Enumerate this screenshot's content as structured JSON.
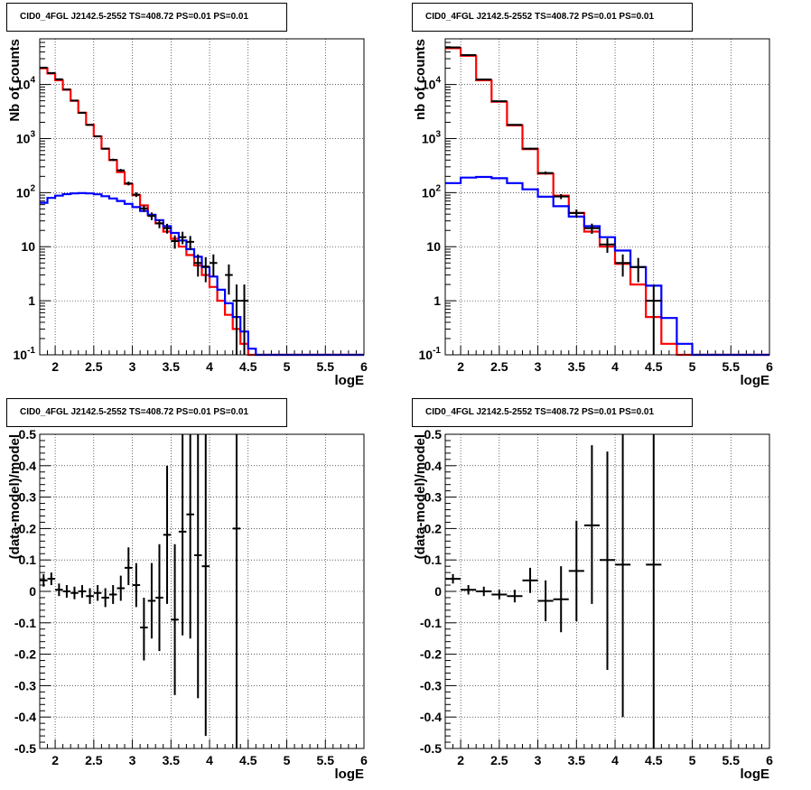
{
  "colors": {
    "data": "#000000",
    "total_model": "#ff0000",
    "bkg_model": "#0000ff",
    "grid": "#000000",
    "frame": "#000000"
  },
  "chart_data": [
    {
      "id": "counts-left",
      "type": "line",
      "title": "CID0_4FGL J2142.5-2552 TS=408.72 PS=0.01 PS=0.01",
      "xlabel": "logE",
      "ylabel": "Nb of counts",
      "xlim": [
        1.8,
        6.0
      ],
      "ylim": [
        0.1,
        70000
      ],
      "yscale": "log",
      "grid": true,
      "xticks": [
        "2",
        "2.5",
        "3",
        "3.5",
        "4",
        "4.5",
        "5",
        "5.5",
        "6"
      ],
      "yticks": [
        {
          "v": 0.1,
          "base": "10",
          "exp": "-1"
        },
        {
          "v": 1,
          "label": "1"
        },
        {
          "v": 10,
          "label": "10"
        },
        {
          "v": 100,
          "base": "10",
          "exp": "2"
        },
        {
          "v": 1000,
          "base": "10",
          "exp": "3"
        },
        {
          "v": 10000,
          "base": "10",
          "exp": "4"
        }
      ],
      "binning": {
        "start": 1.8,
        "width": 0.1
      },
      "series": [
        {
          "role": "total_model",
          "values": [
            20000,
            16000,
            12000,
            8000,
            5000,
            3000,
            1800,
            1100,
            650,
            400,
            240,
            145,
            90,
            58,
            38,
            27,
            19,
            14,
            10,
            7,
            4.5,
            3.0,
            1.8,
            1.0,
            0.55,
            0.3,
            0.16,
            0.1,
            0.1,
            0.1,
            0.1,
            0.1,
            0.1,
            0.1,
            0.1,
            0.1,
            0.1,
            0.1,
            0.1,
            0.1,
            0.1,
            0.1
          ]
        },
        {
          "role": "bkg_model",
          "values": [
            65,
            80,
            88,
            94,
            97,
            98,
            97,
            93,
            86,
            78,
            70,
            62,
            54,
            46,
            39,
            31,
            24,
            18,
            13,
            9,
            6.5,
            4.2,
            2.8,
            1.6,
            0.9,
            0.5,
            0.27,
            0.13,
            0.1,
            0.1,
            0.1,
            0.1,
            0.1,
            0.1,
            0.1,
            0.1,
            0.1,
            0.1,
            0.1,
            0.1,
            0.1,
            0.1
          ]
        }
      ],
      "points": [
        {
          "x": 1.85,
          "y": 20500,
          "lo": 20200,
          "hi": 20800
        },
        {
          "x": 1.95,
          "y": 16300,
          "lo": 16000,
          "hi": 16600
        },
        {
          "x": 2.05,
          "y": 12500,
          "lo": 12300,
          "hi": 12700
        },
        {
          "x": 2.15,
          "y": 8100,
          "lo": 7950,
          "hi": 8250
        },
        {
          "x": 2.25,
          "y": 5050,
          "lo": 4950,
          "hi": 5150
        },
        {
          "x": 2.35,
          "y": 3000,
          "lo": 2940,
          "hi": 3060
        },
        {
          "x": 2.45,
          "y": 1790,
          "lo": 1750,
          "hi": 1830
        },
        {
          "x": 2.55,
          "y": 1100,
          "lo": 1070,
          "hi": 1130
        },
        {
          "x": 2.65,
          "y": 650,
          "lo": 625,
          "hi": 675
        },
        {
          "x": 2.75,
          "y": 405,
          "lo": 385,
          "hi": 425
        },
        {
          "x": 2.85,
          "y": 258,
          "lo": 242,
          "hi": 274
        },
        {
          "x": 2.95,
          "y": 148,
          "lo": 136,
          "hi": 160
        },
        {
          "x": 3.05,
          "y": 92,
          "lo": 83,
          "hi": 101
        },
        {
          "x": 3.15,
          "y": 51,
          "lo": 44,
          "hi": 58
        },
        {
          "x": 3.25,
          "y": 37,
          "lo": 31,
          "hi": 43
        },
        {
          "x": 3.35,
          "y": 27,
          "lo": 22,
          "hi": 32
        },
        {
          "x": 3.45,
          "y": 22,
          "lo": 17.5,
          "hi": 26.5
        },
        {
          "x": 3.55,
          "y": 12.7,
          "lo": 9.2,
          "hi": 16.2
        },
        {
          "x": 3.65,
          "y": 15,
          "lo": 11.1,
          "hi": 18.9
        },
        {
          "x": 3.75,
          "y": 12.3,
          "lo": 8.8,
          "hi": 15.8
        },
        {
          "x": 3.85,
          "y": 5,
          "lo": 2.8,
          "hi": 7.2
        },
        {
          "x": 3.95,
          "y": 4.3,
          "lo": 2.2,
          "hi": 6.4
        },
        {
          "x": 4.05,
          "y": 5.0,
          "lo": 2.8,
          "hi": 7.2
        },
        {
          "x": 4.25,
          "y": 3.0,
          "lo": 1.3,
          "hi": 4.7
        },
        {
          "x": 4.35,
          "y": 1.0,
          "lo": 0.1,
          "hi": 2.0
        },
        {
          "x": 4.45,
          "y": 1.0,
          "lo": 0.1,
          "hi": 2.0
        }
      ]
    },
    {
      "id": "counts-right",
      "type": "line",
      "title": "CID0_4FGL J2142.5-2552 TS=408.72 PS=0.01 PS=0.01",
      "xlabel": "logE",
      "ylabel": "nb of counts",
      "xlim": [
        1.8,
        6.0
      ],
      "ylim": [
        0.1,
        70000
      ],
      "yscale": "log",
      "grid": true,
      "xticks": [
        "2",
        "2.5",
        "3",
        "3.5",
        "4",
        "4.5",
        "5",
        "5.5",
        "6"
      ],
      "yticks": [
        {
          "v": 0.1,
          "base": "10",
          "exp": "-1"
        },
        {
          "v": 1,
          "label": "1"
        },
        {
          "v": 10,
          "label": "10"
        },
        {
          "v": 100,
          "base": "10",
          "exp": "2"
        },
        {
          "v": 1000,
          "base": "10",
          "exp": "3"
        },
        {
          "v": 10000,
          "base": "10",
          "exp": "4"
        }
      ],
      "binning": {
        "start": 1.8,
        "width": 0.2
      },
      "series": [
        {
          "role": "total_model",
          "values": [
            47000,
            34000,
            12000,
            4800,
            1750,
            640,
            225,
            88,
            42,
            19,
            10,
            4.8,
            2.0,
            0.5,
            0.16,
            0.1,
            0.1,
            0.1,
            0.1,
            0.1,
            0.1
          ]
        },
        {
          "role": "bkg_model",
          "values": [
            150,
            190,
            195,
            185,
            150,
            115,
            84,
            56,
            36,
            24,
            15,
            8.5,
            4.2,
            1.9,
            0.48,
            0.16,
            0.1,
            0.1,
            0.1,
            0.1,
            0.1
          ]
        }
      ],
      "points": [
        {
          "x": 1.9,
          "y": 48500,
          "lo": 48100,
          "hi": 48900
        },
        {
          "x": 2.1,
          "y": 35000,
          "lo": 34700,
          "hi": 35300
        },
        {
          "x": 2.3,
          "y": 12400,
          "lo": 12200,
          "hi": 12600
        },
        {
          "x": 2.5,
          "y": 4900,
          "lo": 4800,
          "hi": 5000
        },
        {
          "x": 2.7,
          "y": 1800,
          "lo": 1760,
          "hi": 1840
        },
        {
          "x": 2.9,
          "y": 650,
          "lo": 625,
          "hi": 675
        },
        {
          "x": 3.1,
          "y": 231,
          "lo": 216,
          "hi": 246
        },
        {
          "x": 3.3,
          "y": 85,
          "lo": 76,
          "hi": 94
        },
        {
          "x": 3.5,
          "y": 42,
          "lo": 35,
          "hi": 49
        },
        {
          "x": 3.7,
          "y": 22,
          "lo": 17.3,
          "hi": 26.7
        },
        {
          "x": 3.9,
          "y": 11,
          "lo": 7.7,
          "hi": 14.3
        },
        {
          "x": 4.1,
          "y": 5.0,
          "lo": 2.8,
          "hi": 7.2
        },
        {
          "x": 4.3,
          "y": 4.2,
          "lo": 2.2,
          "hi": 6.2
        },
        {
          "x": 4.5,
          "y": 1.0,
          "lo": 0.1,
          "hi": 2.0
        }
      ]
    },
    {
      "id": "residuals-left",
      "type": "scatter",
      "title": "CID0_4FGL J2142.5-2552 TS=408.72 PS=0.01 PS=0.01",
      "xlabel": "logE",
      "ylabel": "(data-model)/model",
      "xlim": [
        1.8,
        6.0
      ],
      "ylim": [
        -0.5,
        0.5
      ],
      "grid": true,
      "xticks": [
        "2",
        "2.5",
        "3",
        "3.5",
        "4",
        "4.5",
        "5",
        "5.5",
        "6"
      ],
      "yticks": [
        "-0.5",
        "-0.4",
        "-0.3",
        "-0.2",
        "-0.1",
        "0",
        "0.1",
        "0.2",
        "0.3",
        "0.4",
        "0.5"
      ],
      "xerr": 0.05,
      "points": [
        {
          "x": 1.85,
          "y": 0.035,
          "lo": 0.015,
          "hi": 0.055
        },
        {
          "x": 1.95,
          "y": 0.04,
          "lo": 0.02,
          "hi": 0.06
        },
        {
          "x": 2.05,
          "y": 0.005,
          "lo": -0.015,
          "hi": 0.025
        },
        {
          "x": 2.15,
          "y": 0.0,
          "lo": -0.02,
          "hi": 0.02
        },
        {
          "x": 2.25,
          "y": -0.005,
          "lo": -0.025,
          "hi": 0.015
        },
        {
          "x": 2.35,
          "y": 0.0,
          "lo": -0.02,
          "hi": 0.02
        },
        {
          "x": 2.45,
          "y": -0.015,
          "lo": -0.04,
          "hi": 0.01
        },
        {
          "x": 2.55,
          "y": -0.005,
          "lo": -0.03,
          "hi": 0.02
        },
        {
          "x": 2.65,
          "y": -0.02,
          "lo": -0.05,
          "hi": 0.01
        },
        {
          "x": 2.75,
          "y": -0.01,
          "lo": -0.04,
          "hi": 0.02
        },
        {
          "x": 2.85,
          "y": 0.01,
          "lo": -0.03,
          "hi": 0.05
        },
        {
          "x": 2.95,
          "y": 0.075,
          "lo": 0.02,
          "hi": 0.14
        },
        {
          "x": 3.05,
          "y": 0.02,
          "lo": -0.05,
          "hi": 0.09
        },
        {
          "x": 3.15,
          "y": -0.115,
          "lo": -0.22,
          "hi": -0.02
        },
        {
          "x": 3.25,
          "y": -0.03,
          "lo": -0.15,
          "hi": 0.09
        },
        {
          "x": 3.35,
          "y": -0.02,
          "lo": -0.19,
          "hi": 0.15
        },
        {
          "x": 3.45,
          "y": 0.18,
          "lo": -0.04,
          "hi": 0.4
        },
        {
          "x": 3.55,
          "y": -0.09,
          "lo": -0.33,
          "hi": 0.15
        },
        {
          "x": 3.65,
          "y": 0.19,
          "lo": -0.14,
          "hi": 0.5
        },
        {
          "x": 3.75,
          "y": 0.245,
          "lo": -0.15,
          "hi": 0.5
        },
        {
          "x": 3.85,
          "y": 0.115,
          "lo": -0.34,
          "hi": 0.5
        },
        {
          "x": 3.95,
          "y": 0.08,
          "lo": -0.46,
          "hi": 0.5
        },
        {
          "x": 4.35,
          "y": 0.2,
          "lo": -0.5,
          "hi": 0.5
        }
      ]
    },
    {
      "id": "residuals-right",
      "type": "scatter",
      "title": "CID0_4FGL J2142.5-2552 TS=408.72 PS=0.01 PS=0.01",
      "xlabel": "logE",
      "ylabel": "(data-model)/model",
      "xlim": [
        1.8,
        6.0
      ],
      "ylim": [
        -0.5,
        0.5
      ],
      "grid": true,
      "xticks": [
        "2",
        "2.5",
        "3",
        "3.5",
        "4",
        "4.5",
        "5",
        "5.5",
        "6"
      ],
      "yticks": [
        "-0.5",
        "-0.4",
        "-0.3",
        "-0.2",
        "-0.1",
        "0",
        "0.1",
        "0.2",
        "0.3",
        "0.4",
        "0.5"
      ],
      "xerr": 0.1,
      "points": [
        {
          "x": 1.9,
          "y": 0.04,
          "lo": 0.025,
          "hi": 0.055
        },
        {
          "x": 2.1,
          "y": 0.005,
          "lo": -0.01,
          "hi": 0.02
        },
        {
          "x": 2.3,
          "y": 0.0,
          "lo": -0.015,
          "hi": 0.015
        },
        {
          "x": 2.5,
          "y": -0.01,
          "lo": -0.025,
          "hi": 0.005
        },
        {
          "x": 2.7,
          "y": -0.015,
          "lo": -0.035,
          "hi": 0.005
        },
        {
          "x": 2.9,
          "y": 0.035,
          "lo": -0.005,
          "hi": 0.075
        },
        {
          "x": 3.1,
          "y": -0.03,
          "lo": -0.095,
          "hi": 0.035
        },
        {
          "x": 3.3,
          "y": -0.025,
          "lo": -0.13,
          "hi": 0.08
        },
        {
          "x": 3.5,
          "y": 0.065,
          "lo": -0.095,
          "hi": 0.225
        },
        {
          "x": 3.7,
          "y": 0.21,
          "lo": -0.04,
          "hi": 0.465
        },
        {
          "x": 3.9,
          "y": 0.1,
          "lo": -0.25,
          "hi": 0.445
        },
        {
          "x": 4.1,
          "y": 0.085,
          "lo": -0.4,
          "hi": 0.5
        },
        {
          "x": 4.5,
          "y": 0.085,
          "lo": -0.5,
          "hi": 0.5
        }
      ]
    }
  ]
}
